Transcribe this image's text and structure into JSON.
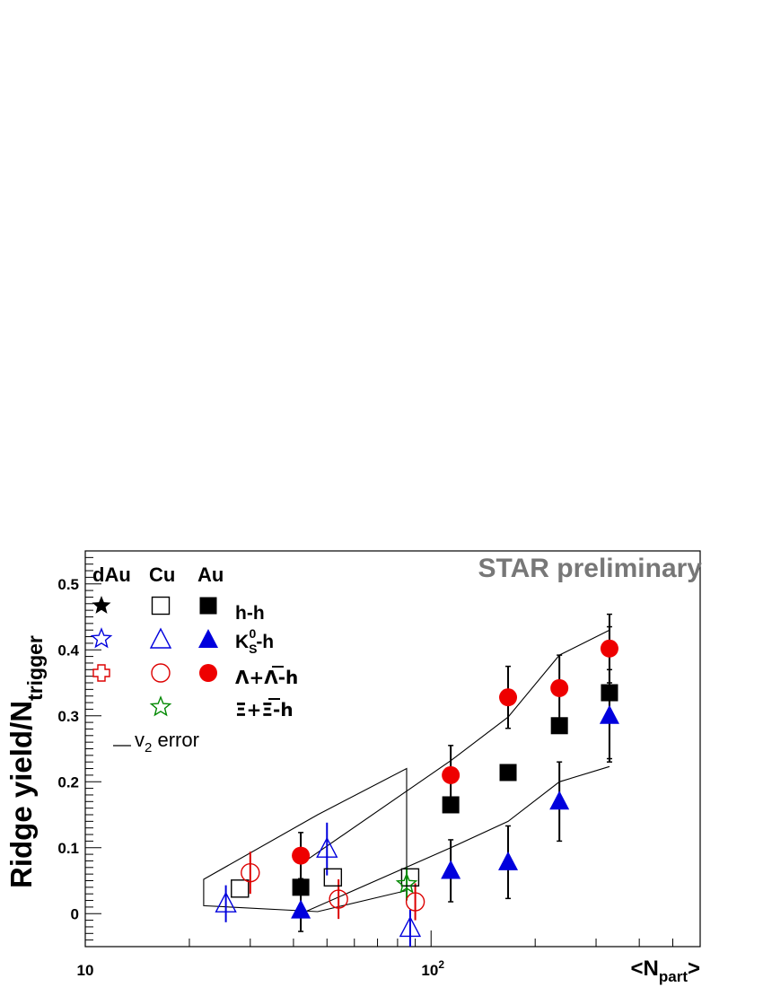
{
  "chart_data": {
    "type": "scatter",
    "watermark": "STAR preliminary",
    "ylabel": "Ridge yield/N",
    "ylabel_sub": "trigger",
    "xlabel": "<N",
    "xlabel_sub": "part",
    "xlabel_end": ">",
    "xscale": "log",
    "xlim": [
      10,
      600
    ],
    "ylim": [
      -0.05,
      0.55
    ],
    "grid": false,
    "legend_placement": "top-left",
    "x_ticks": [
      {
        "value": 10,
        "label": "10"
      },
      {
        "value": 100,
        "label": "10",
        "sup": "2"
      }
    ],
    "y_ticks": [
      {
        "value": 0,
        "label": "0"
      },
      {
        "value": 0.1,
        "label": "0.1"
      },
      {
        "value": 0.2,
        "label": "0.2"
      },
      {
        "value": 0.3,
        "label": "0.3"
      },
      {
        "value": 0.4,
        "label": "0.4"
      },
      {
        "value": 0.5,
        "label": "0.5"
      }
    ],
    "legend": {
      "columns": [
        "dAu",
        "Cu",
        "Au"
      ],
      "rows": [
        {
          "text": "h-h"
        },
        {
          "text": "K",
          "sub": "S",
          "sup": "0",
          "suffix": "-h"
        },
        {
          "text": "Λ+Λ-h"
        },
        {
          "text": "Ξ+Ξ-h"
        }
      ],
      "v2_label": "v",
      "v2_sub": "2",
      "v2_suffix": " error"
    },
    "series": [
      {
        "id": "cu-hh",
        "system": "Cu",
        "marker": "square-open",
        "color": "#000000",
        "points": [
          {
            "x": 28,
            "y": 0.038,
            "err": 0
          },
          {
            "x": 52,
            "y": 0.055,
            "err": 0
          },
          {
            "x": 87,
            "y": 0.055,
            "err": 0
          }
        ]
      },
      {
        "id": "cu-k0s",
        "system": "Cu",
        "marker": "triangle-open",
        "color": "#0000dd",
        "points": [
          {
            "x": 25.5,
            "y": 0.015,
            "err": 0.028
          },
          {
            "x": 50,
            "y": 0.098,
            "err": 0.04
          },
          {
            "x": 87,
            "y": -0.022,
            "err": 0.028
          }
        ]
      },
      {
        "id": "cu-lambda",
        "system": "Cu",
        "marker": "circle-open",
        "color": "#dd0000",
        "points": [
          {
            "x": 30,
            "y": 0.062,
            "err": 0.032
          },
          {
            "x": 54,
            "y": 0.022,
            "err": 0.03
          },
          {
            "x": 90,
            "y": 0.018,
            "err": 0.028
          }
        ]
      },
      {
        "id": "cu-xi",
        "system": "Cu",
        "marker": "star-open",
        "color": "#008800",
        "points": [
          {
            "x": 85,
            "y": 0.045,
            "err": 0.025
          }
        ]
      },
      {
        "id": "au-hh",
        "system": "Au",
        "marker": "square-filled",
        "color": "#000000",
        "points": [
          {
            "x": 42,
            "y": 0.04,
            "err": 0
          },
          {
            "x": 114,
            "y": 0.165,
            "err": 0
          },
          {
            "x": 167,
            "y": 0.214,
            "err": 0
          },
          {
            "x": 235,
            "y": 0.285,
            "err": 0
          },
          {
            "x": 328,
            "y": 0.335,
            "err": 0.1
          }
        ]
      },
      {
        "id": "au-k0s",
        "system": "Au",
        "marker": "triangle-filled",
        "color": "#0000dd",
        "points": [
          {
            "x": 42,
            "y": 0.005,
            "err": 0.032
          },
          {
            "x": 114,
            "y": 0.065,
            "err": 0.047
          },
          {
            "x": 167,
            "y": 0.078,
            "err": 0.055
          },
          {
            "x": 235,
            "y": 0.17,
            "err": 0.06
          },
          {
            "x": 328,
            "y": 0.3,
            "err": 0.07
          }
        ]
      },
      {
        "id": "au-lambda",
        "system": "Au",
        "marker": "circle-filled",
        "color": "#ee0000",
        "points": [
          {
            "x": 42,
            "y": 0.088,
            "err": 0.035
          },
          {
            "x": 114,
            "y": 0.21,
            "err": 0.045
          },
          {
            "x": 167,
            "y": 0.328,
            "err": 0.047
          },
          {
            "x": 235,
            "y": 0.342,
            "err": 0.05
          },
          {
            "x": 328,
            "y": 0.402,
            "err": 0.052
          }
        ]
      }
    ],
    "v2_error_bands": [
      {
        "id": "cu-band",
        "polygon": [
          [
            22,
            0.052
          ],
          [
            47,
            0.15
          ],
          [
            85,
            0.22
          ],
          [
            85,
            0.035
          ],
          [
            47,
            0.003
          ],
          [
            22,
            0.012
          ]
        ]
      },
      {
        "id": "au-upper-band",
        "polygon": [
          [
            42,
            0.075
          ],
          [
            114,
            0.232
          ],
          [
            167,
            0.298
          ],
          [
            235,
            0.392
          ],
          [
            328,
            0.43
          ]
        ]
      },
      {
        "id": "au-lower-band",
        "polygon": [
          [
            42,
            0.0
          ],
          [
            114,
            0.1
          ],
          [
            167,
            0.14
          ],
          [
            235,
            0.2
          ],
          [
            328,
            0.223
          ]
        ]
      }
    ]
  }
}
